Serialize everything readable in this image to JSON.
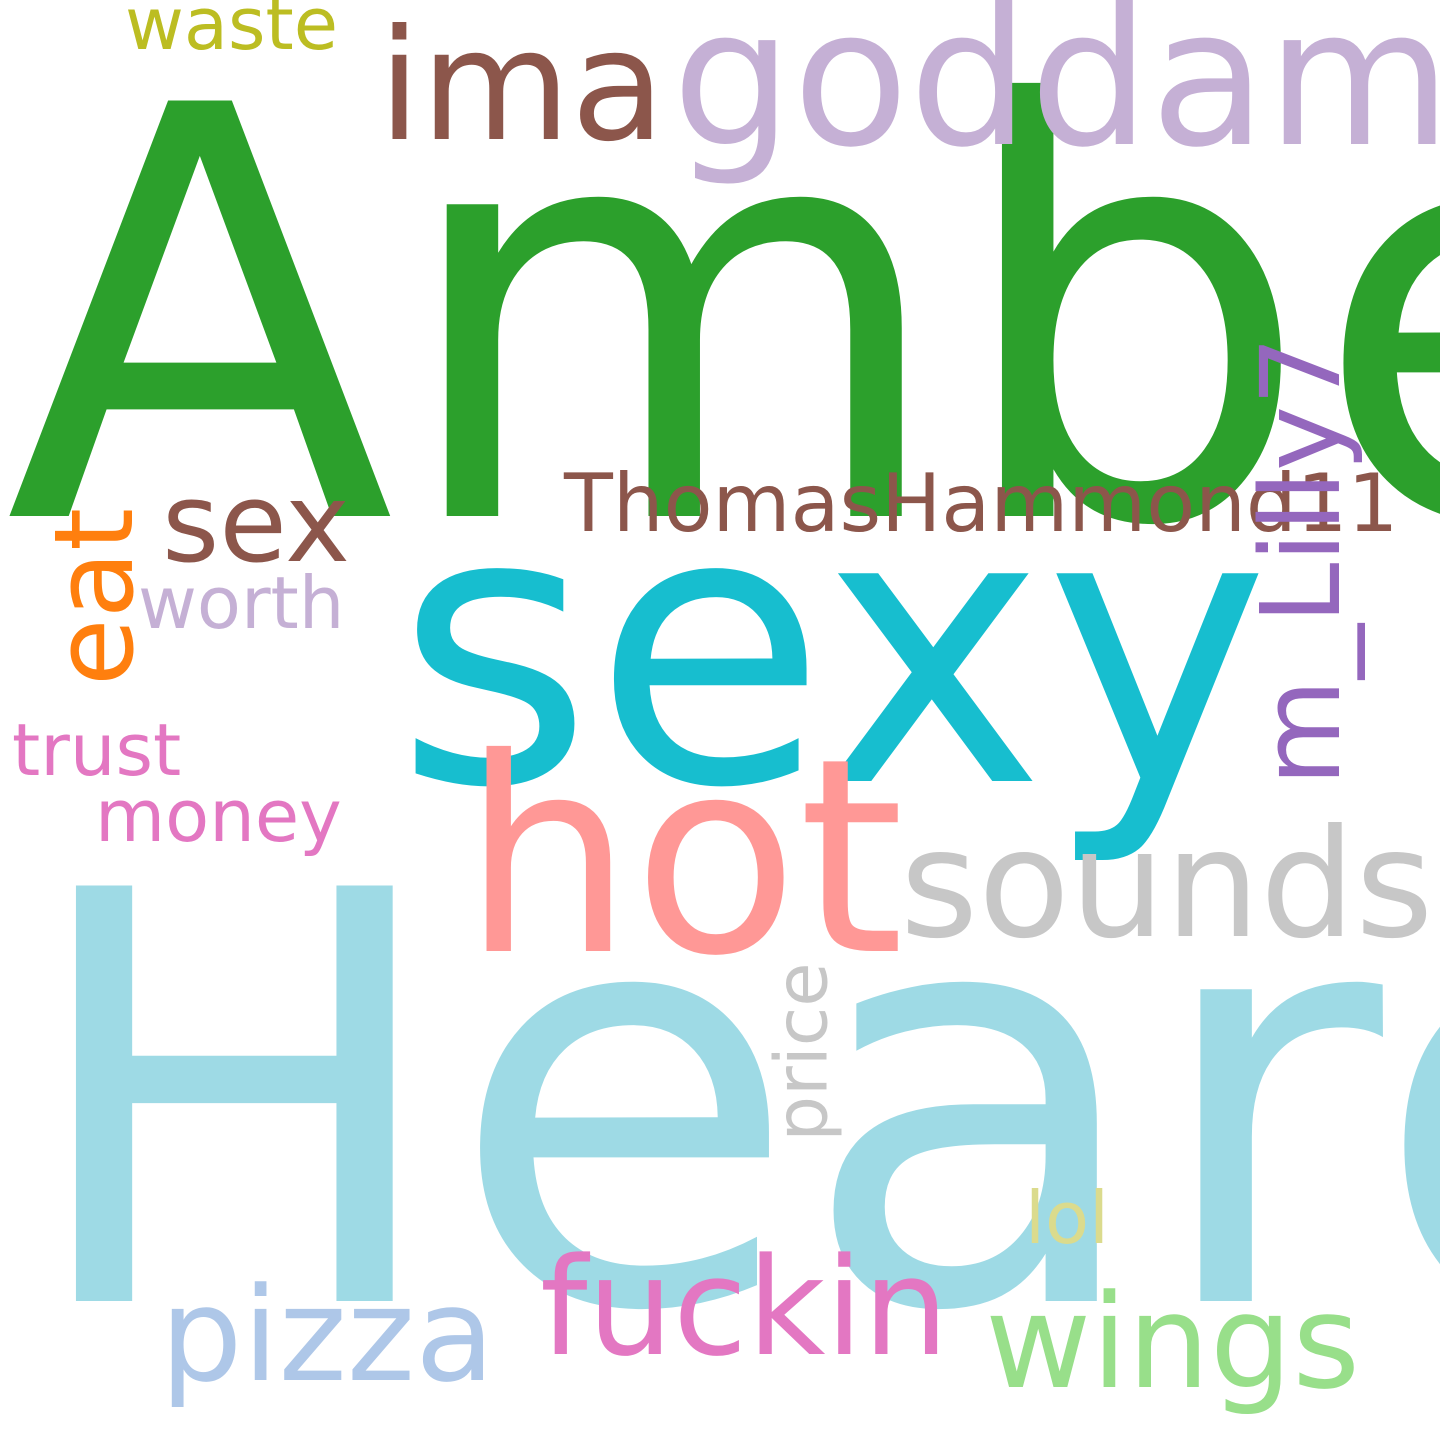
{
  "wordcloud": {
    "words": [
      {
        "text": "Amber",
        "color": "#2ca02c"
      },
      {
        "text": "Heard",
        "color": "#9edae5"
      },
      {
        "text": "sexy",
        "color": "#17becf"
      },
      {
        "text": "goddamn",
        "color": "#c5b0d5"
      },
      {
        "text": "ima",
        "color": "#8c564b"
      },
      {
        "text": "hot",
        "color": "#ff9896"
      },
      {
        "text": "sex",
        "color": "#8c564b"
      },
      {
        "text": "eat",
        "color": "#ff7f0e"
      },
      {
        "text": "ThomasHammond11",
        "color": "#8c564b"
      },
      {
        "text": "m_Lilly7",
        "color": "#9467bd"
      },
      {
        "text": "sounds",
        "color": "#c7c7c7"
      },
      {
        "text": "worth",
        "color": "#c5b0d5"
      },
      {
        "text": "trust",
        "color": "#e377c2"
      },
      {
        "text": "money",
        "color": "#e377c2"
      },
      {
        "text": "waste",
        "color": "#bcbd22"
      },
      {
        "text": "price",
        "color": "#c7c7c7"
      },
      {
        "text": "lol",
        "color": "#dbdb8d"
      },
      {
        "text": "pizza",
        "color": "#aec7e8"
      },
      {
        "text": "fuckin",
        "color": "#e377c2"
      },
      {
        "text": "wings",
        "color": "#98df8a"
      }
    ]
  }
}
